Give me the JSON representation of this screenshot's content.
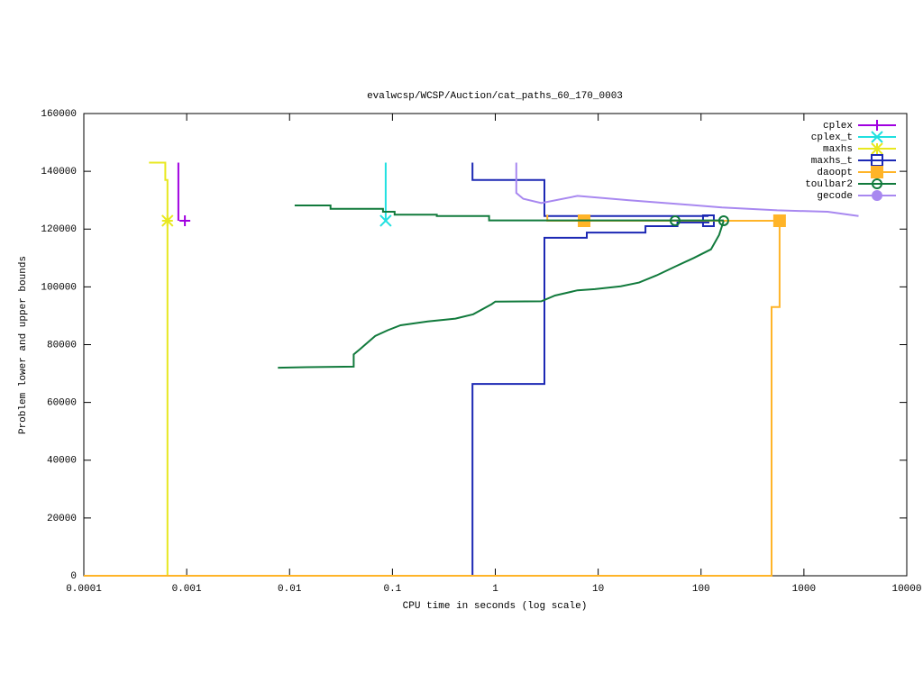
{
  "chart_data": {
    "type": "line",
    "title": "evalwcsp/WCSP/Auction/cat_paths_60_170_0003",
    "x_label": "CPU time in seconds (log scale)",
    "y_label": "Problem lower and upper bounds",
    "x_log": true,
    "xlim": [
      0.0001,
      10000
    ],
    "xticks": [
      0.0001,
      0.001,
      0.01,
      0.1,
      1,
      10,
      100,
      1000,
      10000
    ],
    "ylim": [
      0,
      160000
    ],
    "yticks": [
      0,
      20000,
      40000,
      60000,
      80000,
      100000,
      120000,
      140000,
      160000
    ],
    "legend": "top-right",
    "series": [
      {
        "name": "cplex",
        "color": "#a000e0",
        "marker": "plus",
        "x": [
          0.00083,
          0.00083
        ],
        "values": [
          143000,
          122900
        ],
        "marker_x": [
          0.00096
        ],
        "marker_values": [
          122900
        ]
      },
      {
        "name": "cplex_t",
        "color": "#20e0e0",
        "marker": "cross",
        "x": [
          0.086,
          0.086
        ],
        "values": [
          143000,
          122900
        ],
        "marker_x": [
          0.086
        ],
        "marker_values": [
          122900
        ]
      },
      {
        "name": "maxhs",
        "color": "#e8e820",
        "marker": "star",
        "x": [
          0.00043,
          0.00062,
          0.00062,
          0.00065,
          0.00065
        ],
        "values": [
          143000,
          143000,
          137000,
          137000,
          0
        ],
        "marker_x": [
          0.00065
        ],
        "marker_values": [
          122900
        ]
      },
      {
        "name": "maxhs_t",
        "color": "#1c28b4",
        "marker": "square",
        "x": [
          0.6,
          0.6,
          3.0,
          3.0,
          118,
          null,
          0.6,
          0.6,
          3.0,
          3.0,
          7.75,
          7.75,
          28.8,
          28.8,
          59,
          59,
          118,
          118
        ],
        "values": [
          143000,
          137000,
          137000,
          124500,
          124500,
          null,
          0,
          66400,
          66400,
          117000,
          117000,
          118800,
          118800,
          121000,
          121000,
          122300,
          122300,
          122900
        ],
        "marker_x": [
          118
        ],
        "marker_values": [
          122900
        ]
      },
      {
        "name": "daoopt",
        "color": "#ffb428",
        "marker": "filled-square",
        "x": [
          0.0001,
          485,
          485,
          580,
          580,
          null,
          3.2,
          3.2,
          580
        ],
        "values": [
          0,
          0,
          93000,
          93000,
          122900,
          null,
          125000,
          122900,
          122900
        ],
        "marker_x": [
          7.3,
          580
        ],
        "marker_values": [
          122900,
          122900
        ]
      },
      {
        "name": "toulbar2",
        "color": "#117a3c",
        "marker": "circle",
        "x": [
          0.0112,
          0.025,
          0.025,
          0.081,
          0.081,
          0.105,
          0.105,
          0.27,
          0.27,
          0.87,
          0.87,
          166,
          null,
          0.0077,
          0.0146,
          0.042,
          0.042,
          0.049,
          0.056,
          0.068,
          0.09,
          0.12,
          0.22,
          0.41,
          0.61,
          0.92,
          1.0,
          2.8,
          3.8,
          6.3,
          9.3,
          16.6,
          25,
          37,
          56,
          85,
          125,
          150,
          166
        ],
        "values": [
          128200,
          128200,
          127000,
          127000,
          126000,
          126000,
          125000,
          125000,
          124500,
          124500,
          123000,
          123000,
          null,
          72000,
          72200,
          72400,
          76600,
          78600,
          80400,
          83000,
          85000,
          86700,
          88000,
          89000,
          90500,
          94000,
          94900,
          95000,
          97000,
          98800,
          99200,
          100200,
          101500,
          104000,
          107000,
          110000,
          113000,
          118000,
          122900
        ],
        "marker_x": [
          56,
          166
        ],
        "marker_values": [
          122900,
          122900
        ]
      },
      {
        "name": "gecode",
        "color": "#a888f0",
        "marker": "filled-circle",
        "x": [
          1.6,
          1.6,
          1.87,
          2.8,
          6.3,
          20,
          70,
          160,
          550,
          1700,
          3400
        ],
        "values": [
          143000,
          132500,
          130500,
          129000,
          131500,
          130000,
          128500,
          127500,
          126500,
          126000,
          124500
        ]
      }
    ]
  }
}
